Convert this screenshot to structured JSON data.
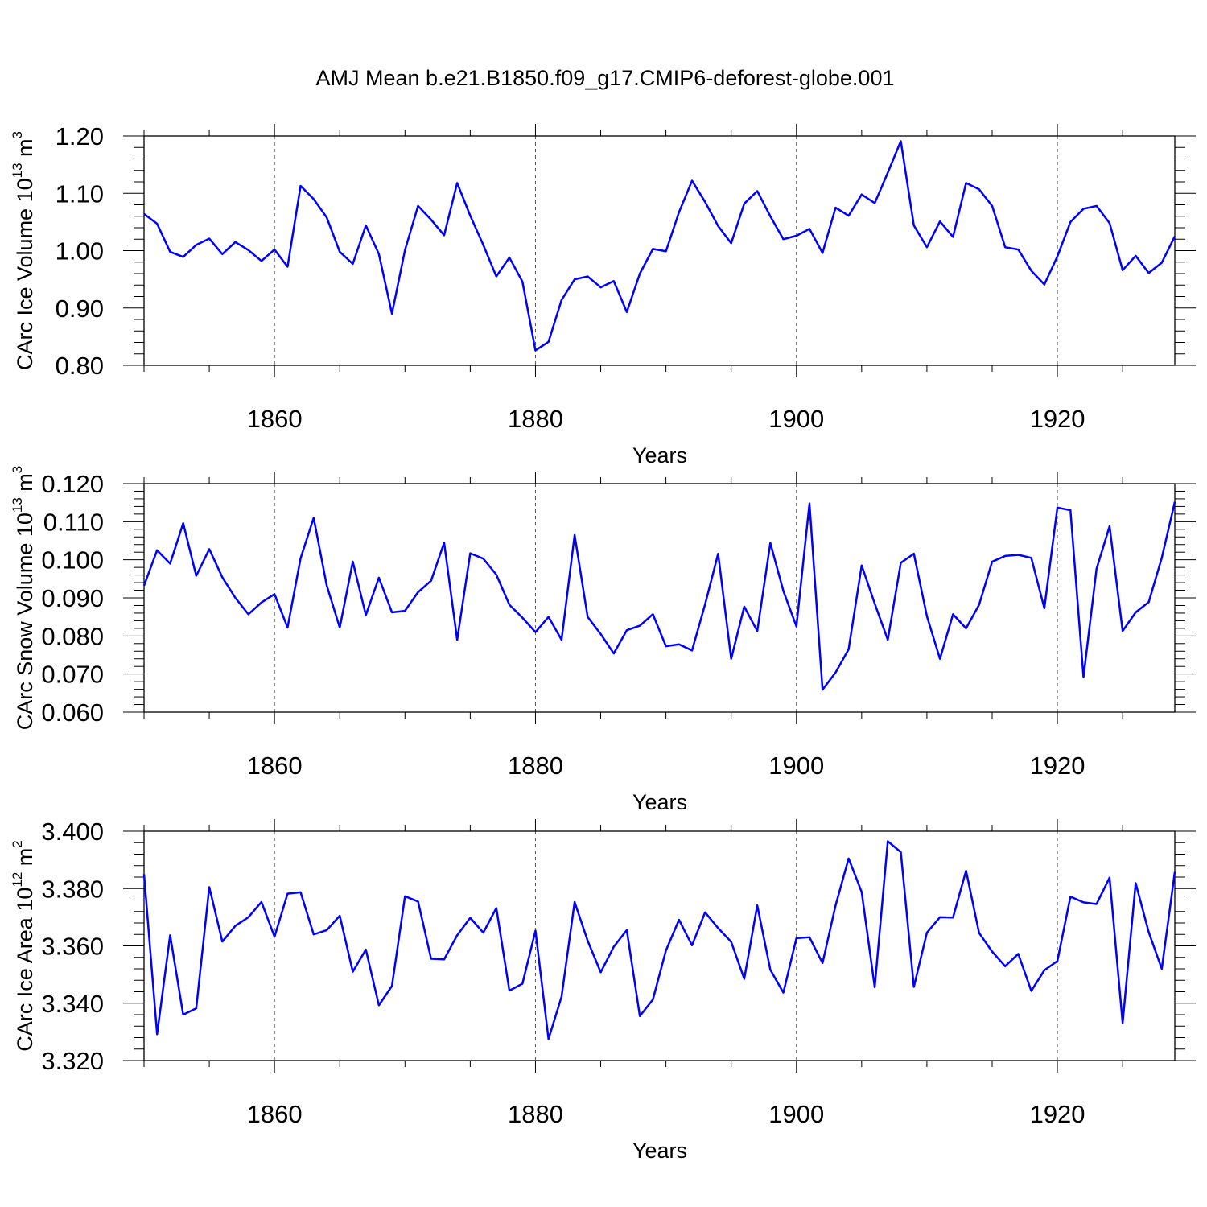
{
  "chart_data": [
    {
      "type": "line",
      "title": "AMJ Mean b.e21.B1850.f09_g17.CMIP6-deforest-globe.001",
      "xlabel": "Years",
      "ylabel": "CArc Ice Volume 10",
      "ylabel_exp": "13",
      "ylabel_unit": " m",
      "ylabel_unit_exp": "3",
      "xlim": [
        1850,
        1929
      ],
      "ylim": [
        0.8,
        1.2
      ],
      "xticks": [
        1860,
        1880,
        1900,
        1920
      ],
      "xtick_labels": [
        "1860",
        "1880",
        "1900",
        "1920"
      ],
      "yticks": [
        0.8,
        0.9,
        1.0,
        1.1,
        1.2
      ],
      "ytick_labels": [
        "0.80",
        "0.90",
        "1.00",
        "1.10",
        "1.20"
      ],
      "series": [
        {
          "name": "CArc Ice Volume",
          "color": "#0000ff",
          "x_start": 1850,
          "values": [
            1.064,
            1.047,
            0.998,
            0.989,
            1.01,
            1.021,
            0.994,
            1.015,
            1.001,
            0.982,
            1.002,
            0.972,
            1.113,
            1.09,
            1.058,
            0.998,
            0.977,
            1.044,
            0.994,
            0.89,
            1.001,
            1.078,
            1.054,
            1.027,
            1.118,
            1.061,
            1.01,
            0.955,
            0.988,
            0.946,
            0.826,
            0.841,
            0.914,
            0.95,
            0.955,
            0.936,
            0.947,
            0.893,
            0.96,
            1.003,
            0.999,
            1.067,
            1.122,
            1.085,
            1.043,
            1.013,
            1.082,
            1.104,
            1.06,
            1.02,
            1.026,
            1.038,
            0.996,
            1.075,
            1.061,
            1.098,
            1.083,
            1.136,
            1.191,
            1.044,
            1.006,
            1.051,
            1.024,
            1.118,
            1.107,
            1.078,
            1.006,
            1.002,
            0.965,
            0.941,
            0.99,
            1.05,
            1.073,
            1.078,
            1.048,
            0.966,
            0.991,
            0.961,
            0.979,
            1.025
          ]
        }
      ]
    },
    {
      "type": "line",
      "xlabel": "Years",
      "ylabel": "CArc Snow Volume 10",
      "ylabel_exp": "13",
      "ylabel_unit": " m",
      "ylabel_unit_exp": "3",
      "xlim": [
        1850,
        1929
      ],
      "ylim": [
        0.06,
        0.12
      ],
      "xticks": [
        1860,
        1880,
        1900,
        1920
      ],
      "xtick_labels": [
        "1860",
        "1880",
        "1900",
        "1920"
      ],
      "yticks": [
        0.06,
        0.07,
        0.08,
        0.09,
        0.1,
        0.11,
        0.12
      ],
      "ytick_labels": [
        "0.060",
        "0.070",
        "0.080",
        "0.090",
        "0.100",
        "0.110",
        "0.120"
      ],
      "series": [
        {
          "name": "CArc Snow Volume",
          "color": "#0000ff",
          "x_start": 1850,
          "values": [
            0.0932,
            0.1025,
            0.099,
            0.1096,
            0.0958,
            0.1028,
            0.0954,
            0.09,
            0.0857,
            0.0888,
            0.091,
            0.0822,
            0.1004,
            0.111,
            0.0933,
            0.0822,
            0.0995,
            0.0855,
            0.0953,
            0.0862,
            0.0866,
            0.0915,
            0.0945,
            0.1045,
            0.079,
            0.1017,
            0.1003,
            0.0961,
            0.0882,
            0.0848,
            0.081,
            0.085,
            0.079,
            0.1065,
            0.085,
            0.0805,
            0.0754,
            0.0815,
            0.0827,
            0.0857,
            0.0773,
            0.0778,
            0.0762,
            0.0883,
            0.1016,
            0.074,
            0.0877,
            0.0813,
            0.1044,
            0.0918,
            0.0825,
            0.1148,
            0.0659,
            0.0704,
            0.0765,
            0.0985,
            0.0885,
            0.079,
            0.0992,
            0.1016,
            0.0852,
            0.074,
            0.0857,
            0.082,
            0.0882,
            0.0995,
            0.101,
            0.1013,
            0.1005,
            0.0873,
            0.1137,
            0.113,
            0.0692,
            0.0976,
            0.1088,
            0.0813,
            0.0862,
            0.0889,
            0.1005,
            0.1152
          ]
        }
      ]
    },
    {
      "type": "line",
      "xlabel": "Years",
      "ylabel": "CArc Ice Area 10",
      "ylabel_exp": "12",
      "ylabel_unit": " m",
      "ylabel_unit_exp": "2",
      "xlim": [
        1850,
        1929
      ],
      "ylim": [
        3.32,
        3.4
      ],
      "xticks": [
        1860,
        1880,
        1900,
        1920
      ],
      "xtick_labels": [
        "1860",
        "1880",
        "1900",
        "1920"
      ],
      "yticks": [
        3.32,
        3.34,
        3.36,
        3.38,
        3.4
      ],
      "ytick_labels": [
        "3.320",
        "3.340",
        "3.360",
        "3.380",
        "3.400"
      ],
      "series": [
        {
          "name": "CArc Ice Area",
          "color": "#0000ff",
          "x_start": 1850,
          "values": [
            3.385,
            3.3292,
            3.3637,
            3.336,
            3.3382,
            3.3805,
            3.3615,
            3.367,
            3.37,
            3.3753,
            3.3632,
            3.3782,
            3.3787,
            3.364,
            3.3655,
            3.3705,
            3.351,
            3.3587,
            3.3393,
            3.346,
            3.3773,
            3.3755,
            3.3555,
            3.3553,
            3.3637,
            3.3698,
            3.3646,
            3.3732,
            3.3444,
            3.3468,
            3.3653,
            3.3275,
            3.3423,
            3.3753,
            3.3618,
            3.3508,
            3.3597,
            3.3655,
            3.3355,
            3.3413,
            3.3584,
            3.3691,
            3.3602,
            3.3717,
            3.3662,
            3.3614,
            3.3485,
            3.3741,
            3.3517,
            3.3437,
            3.3627,
            3.363,
            3.354,
            3.3741,
            3.3905,
            3.3788,
            3.3456,
            3.3965,
            3.3927,
            3.3457,
            3.3646,
            3.37,
            3.3699,
            3.3862,
            3.3645,
            3.358,
            3.3529,
            3.3572,
            3.3443,
            3.3515,
            3.3547,
            3.3772,
            3.3752,
            3.3746,
            3.3838,
            3.3331,
            3.3819,
            3.3648,
            3.352,
            3.3858
          ]
        }
      ]
    }
  ]
}
